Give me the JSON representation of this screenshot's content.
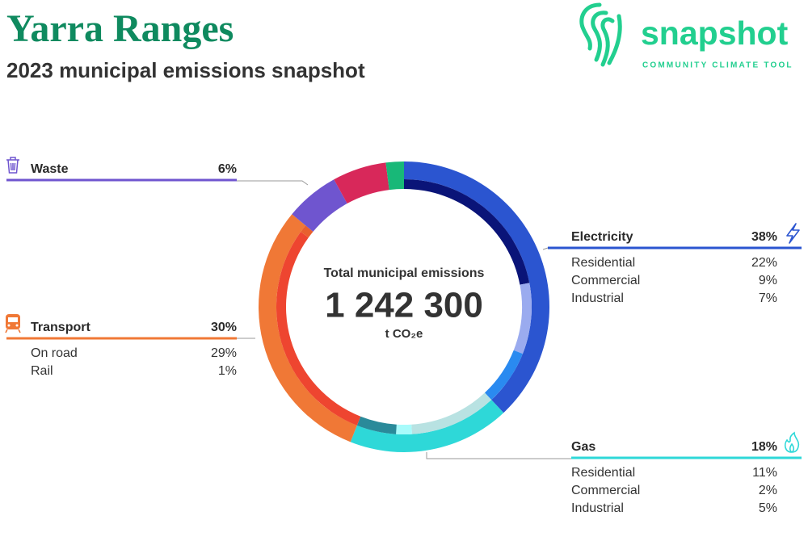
{
  "brand": {
    "name": "snapshot",
    "tagline": "COMMUNITY CLIMATE TOOL"
  },
  "chart_data": {
    "type": "pie",
    "title": "Yarra Ranges",
    "subtitle": "2023 municipal emissions snapshot",
    "center_title": "Total municipal emissions",
    "total": {
      "value": 1242300,
      "label": "1 242 300"
    },
    "total_unit": "t CO₂e",
    "categories": [
      "Electricity",
      "Gas",
      "Transport",
      "Waste",
      null,
      null
    ],
    "values": [
      38,
      18,
      30,
      6,
      6,
      2
    ],
    "value_labels": [
      "38%",
      "18%",
      "30%",
      "6%",
      null,
      null
    ],
    "colors": [
      "#2b55d0",
      "#2ed8d8",
      "#f07836",
      "#6f55cf",
      "#d8285a",
      "#18b878"
    ],
    "subcategories": [
      {
        "categories": [
          "Residential",
          "Commercial",
          "Industrial"
        ],
        "values": [
          22,
          9,
          7
        ],
        "value_labels": [
          "22%",
          "9%",
          "7%"
        ],
        "colors": [
          "#0a1478",
          "#9aabef",
          "#2a8af0"
        ]
      },
      {
        "categories": [
          "Residential",
          "Commercial",
          "Industrial"
        ],
        "values": [
          11,
          2,
          5
        ],
        "value_labels": [
          "11%",
          "2%",
          "5%"
        ],
        "colors": [
          "#b8e2e2",
          "#a8fbfb",
          "#2a8a9a"
        ]
      },
      {
        "categories": [
          "On road",
          "Rail"
        ],
        "values": [
          29,
          1
        ],
        "value_labels": [
          "29%",
          "1%"
        ],
        "colors": [
          "#ee4530",
          "#e8602e"
        ]
      },
      null,
      null,
      null
    ]
  }
}
